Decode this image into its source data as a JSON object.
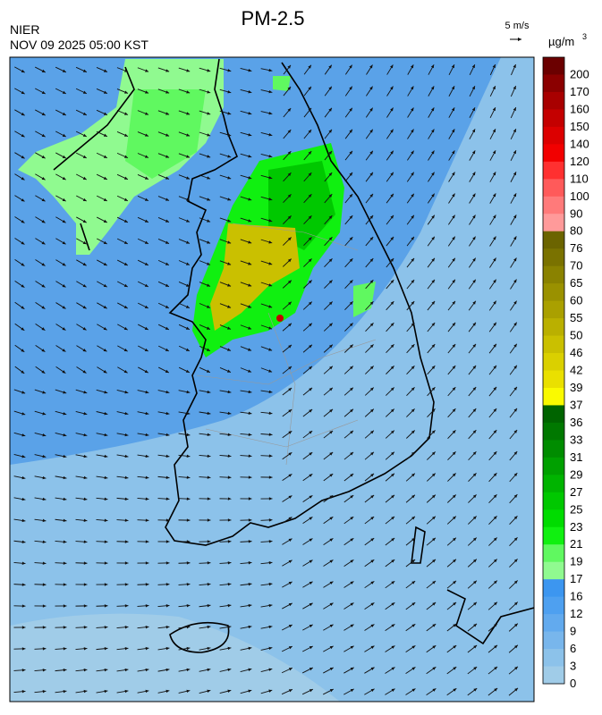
{
  "header": {
    "title": "PM-2.5",
    "agency": "NIER",
    "time": "NOV 09 2025 05:00 KST",
    "wind_scale": "5 m/s",
    "unit": "µg/m",
    "unit_power": "3"
  },
  "colorbar": [
    {
      "label": 200,
      "color": "#6b0000"
    },
    {
      "label": 170,
      "color": "#8b0000"
    },
    {
      "label": 160,
      "color": "#a80000"
    },
    {
      "label": 150,
      "color": "#c40000"
    },
    {
      "label": 140,
      "color": "#dc0000"
    },
    {
      "label": 120,
      "color": "#f20000"
    },
    {
      "label": 110,
      "color": "#ff3030"
    },
    {
      "label": 100,
      "color": "#ff5a5a"
    },
    {
      "label": 90,
      "color": "#ff7a7a"
    },
    {
      "label": 80,
      "color": "#ff9a9a"
    },
    {
      "label": 76,
      "color": "#6b6400"
    },
    {
      "label": 70,
      "color": "#7a7200"
    },
    {
      "label": 65,
      "color": "#8a8200"
    },
    {
      "label": 60,
      "color": "#9a9100"
    },
    {
      "label": 55,
      "color": "#aaa000"
    },
    {
      "label": 50,
      "color": "#bab000"
    },
    {
      "label": 46,
      "color": "#cac000"
    },
    {
      "label": 42,
      "color": "#dad000"
    },
    {
      "label": 39,
      "color": "#eae000"
    },
    {
      "label": 37,
      "color": "#fafa00"
    },
    {
      "label": 36,
      "color": "#006400"
    },
    {
      "label": 33,
      "color": "#007800"
    },
    {
      "label": 31,
      "color": "#008c00"
    },
    {
      "label": 29,
      "color": "#00a000"
    },
    {
      "label": 27,
      "color": "#00b400"
    },
    {
      "label": 25,
      "color": "#00c800"
    },
    {
      "label": 23,
      "color": "#00dc00"
    },
    {
      "label": 21,
      "color": "#10f010"
    },
    {
      "label": 19,
      "color": "#60f860"
    },
    {
      "label": 17,
      "color": "#90fa90"
    },
    {
      "label": 16,
      "color": "#3c96f0"
    },
    {
      "label": 12,
      "color": "#4ea0f0"
    },
    {
      "label": 9,
      "color": "#62aaee"
    },
    {
      "label": 6,
      "color": "#78b6ec"
    },
    {
      "label": 3,
      "color": "#8cc2ea"
    },
    {
      "label": 0,
      "color": "#a0cce8"
    }
  ]
}
